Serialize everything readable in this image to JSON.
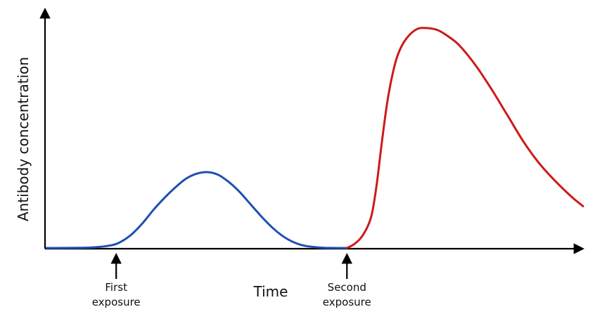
{
  "chart_data": {
    "type": "line",
    "title": "",
    "xlabel": "Time",
    "ylabel": "Antibody concentration",
    "xlim": [
      0,
      100
    ],
    "ylim": [
      0,
      100
    ],
    "grid": false,
    "tick_labels": false,
    "series": [
      {
        "color": "#1f4fb0",
        "x": [
          0,
          8,
          12,
          14,
          16,
          18,
          20,
          22,
          24,
          26,
          28,
          30,
          32,
          34,
          36,
          38,
          40,
          42,
          44,
          46,
          48,
          50,
          52,
          54,
          56
        ],
        "y": [
          0,
          0.2,
          1.2,
          3,
          6.5,
          11.5,
          17.5,
          22.8,
          27.5,
          31.5,
          33.8,
          34.5,
          33.3,
          30,
          25.5,
          20,
          14.5,
          9.5,
          5.5,
          2.7,
          1.1,
          0.4,
          0.1,
          0,
          0
        ]
      },
      {
        "color": "#cc1a1a",
        "x": [
          56,
          57.5,
          59,
          60.5,
          61.5,
          62.5,
          63.5,
          64.5,
          65.5,
          67,
          69,
          71,
          73,
          75,
          77,
          80,
          83,
          86,
          89,
          92,
          95,
          98,
          100
        ],
        "y": [
          0,
          2,
          6,
          14,
          28,
          48,
          66,
          79,
          88,
          95,
          99.5,
          100,
          99,
          96,
          92,
          83,
          72,
          60,
          48,
          38,
          30,
          23,
          19
        ]
      }
    ],
    "annotations": [
      {
        "text_lines": [
          "First",
          "exposure"
        ],
        "x": 13
      },
      {
        "text_lines": [
          "Second",
          "exposure"
        ],
        "x": 56
      }
    ]
  }
}
